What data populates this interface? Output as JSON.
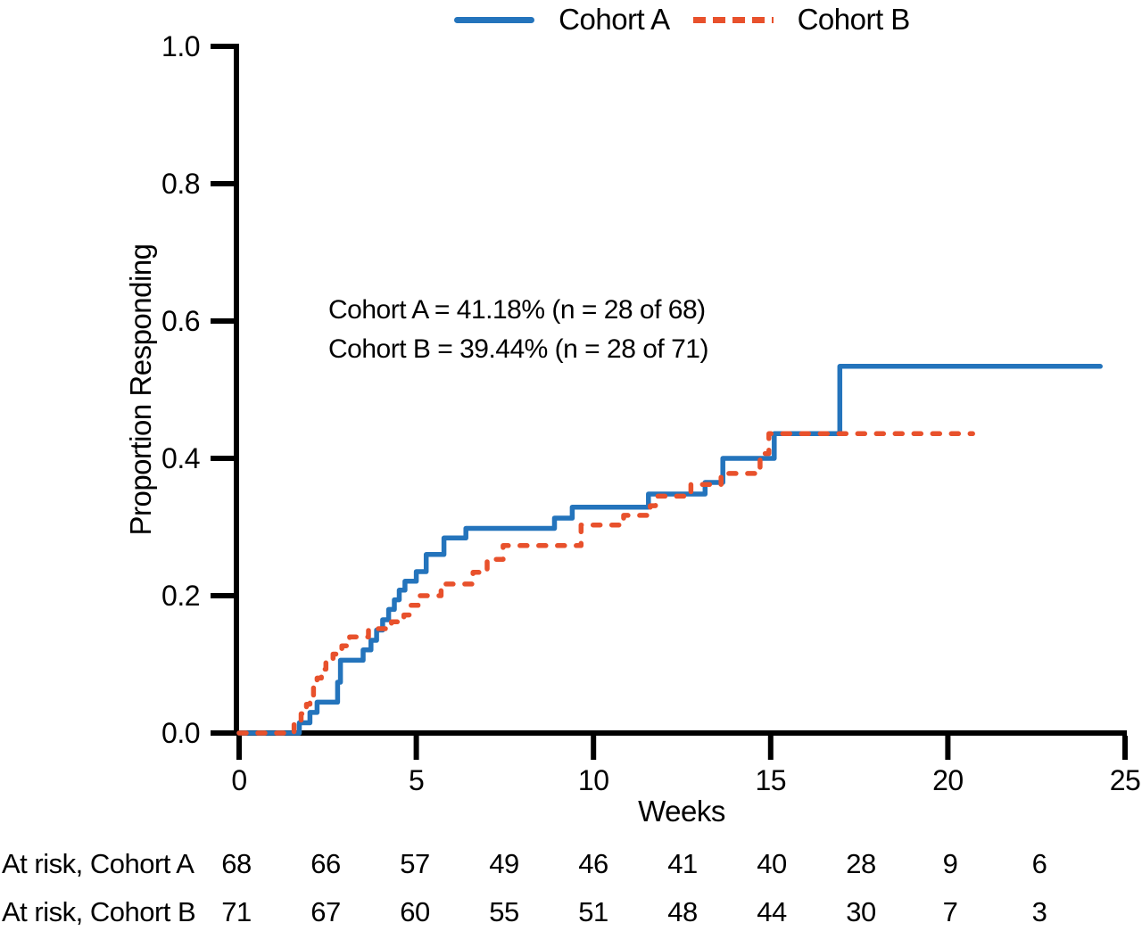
{
  "chart_data": {
    "type": "line",
    "subtype": "kaplan-meier-step",
    "title": "",
    "xlabel": "Weeks",
    "ylabel": "Proportion Responding",
    "xlim": [
      0,
      25
    ],
    "ylim": [
      0.0,
      1.0
    ],
    "grid": false,
    "legend_position": "top-center",
    "x_ticks": [
      0,
      5,
      10,
      15,
      20,
      25
    ],
    "x_tick_labels": [
      "0",
      "5",
      "10",
      "15",
      "20",
      "25"
    ],
    "y_ticks": [
      0.0,
      0.2,
      0.4,
      0.6,
      0.8,
      1.0
    ],
    "y_tick_labels": [
      "0.0",
      "0.2",
      "0.4",
      "0.6",
      "0.8",
      "1.0"
    ],
    "annotations": [
      "Cohort A = 41.18% (n = 28 of 68)",
      "Cohort B = 39.44% (n = 28 of 71)"
    ],
    "series": [
      {
        "name": "Cohort A",
        "color": "#2474BC",
        "line_style": "solid",
        "response_rate_pct": 41.18,
        "responders": 28,
        "n": 68,
        "end_week": 24.3,
        "steps": [
          [
            0,
            0
          ],
          [
            1.7,
            0.015
          ],
          [
            2.0,
            0.03
          ],
          [
            2.2,
            0.045
          ],
          [
            2.78,
            0.074
          ],
          [
            2.86,
            0.106
          ],
          [
            3.5,
            0.121
          ],
          [
            3.72,
            0.135
          ],
          [
            3.88,
            0.15
          ],
          [
            4.05,
            0.165
          ],
          [
            4.22,
            0.18
          ],
          [
            4.38,
            0.194
          ],
          [
            4.52,
            0.208
          ],
          [
            4.68,
            0.221
          ],
          [
            5.0,
            0.235
          ],
          [
            5.28,
            0.26
          ],
          [
            5.78,
            0.284
          ],
          [
            6.4,
            0.298
          ],
          [
            8.9,
            0.313
          ],
          [
            9.4,
            0.329
          ],
          [
            11.55,
            0.348
          ],
          [
            13.15,
            0.365
          ],
          [
            13.65,
            0.4
          ],
          [
            15.1,
            0.436
          ],
          [
            16.95,
            0.534
          ]
        ]
      },
      {
        "name": "Cohort B",
        "color": "#E8512C",
        "line_style": "dashed",
        "response_rate_pct": 39.44,
        "responders": 28,
        "n": 71,
        "end_week": 20.7,
        "steps": [
          [
            0,
            0
          ],
          [
            1.55,
            0.014
          ],
          [
            1.75,
            0.028
          ],
          [
            1.9,
            0.042
          ],
          [
            2.0,
            0.054
          ],
          [
            2.1,
            0.067
          ],
          [
            2.2,
            0.08
          ],
          [
            2.32,
            0.093
          ],
          [
            2.45,
            0.105
          ],
          [
            2.65,
            0.115
          ],
          [
            2.9,
            0.127
          ],
          [
            3.12,
            0.14
          ],
          [
            3.65,
            0.152
          ],
          [
            4.3,
            0.162
          ],
          [
            4.65,
            0.172
          ],
          [
            4.85,
            0.186
          ],
          [
            5.05,
            0.2
          ],
          [
            5.7,
            0.217
          ],
          [
            6.6,
            0.234
          ],
          [
            7.0,
            0.253
          ],
          [
            7.45,
            0.273
          ],
          [
            9.65,
            0.303
          ],
          [
            10.85,
            0.317
          ],
          [
            11.6,
            0.331
          ],
          [
            11.75,
            0.345
          ],
          [
            12.75,
            0.362
          ],
          [
            13.6,
            0.378
          ],
          [
            14.7,
            0.407
          ],
          [
            14.95,
            0.436
          ]
        ]
      }
    ],
    "at_risk_table": {
      "rows": [
        {
          "label": "At risk, Cohort A",
          "values": [
            68,
            66,
            57,
            49,
            46,
            41,
            40,
            28,
            9,
            6
          ]
        },
        {
          "label": "At risk, Cohort B",
          "values": [
            71,
            67,
            60,
            55,
            51,
            48,
            44,
            30,
            7,
            3
          ]
        }
      ]
    }
  }
}
